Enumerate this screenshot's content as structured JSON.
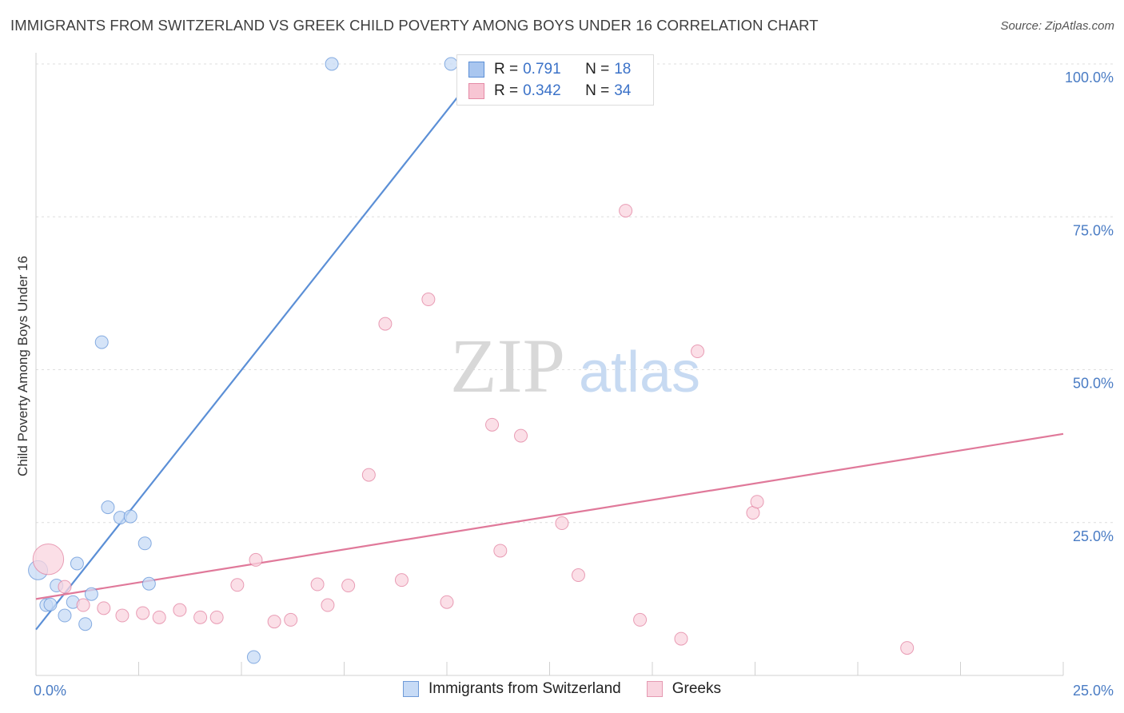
{
  "title": "IMMIGRANTS FROM SWITZERLAND VS GREEK CHILD POVERTY AMONG BOYS UNDER 16 CORRELATION CHART",
  "source": "Source: ZipAtlas.com",
  "watermark": {
    "zip": "ZIP",
    "atlas": "atlas"
  },
  "legend_stats": [
    {
      "r_label": "R =",
      "r_value": "0.791",
      "n_label": "N =",
      "n_value": "18",
      "color": "#a9c6ef",
      "border": "#5b8fd6"
    },
    {
      "r_label": "R =",
      "r_value": "0.342",
      "n_label": "N =",
      "n_value": "34",
      "color": "#f7c5d3",
      "border": "#e58aa6"
    }
  ],
  "bottom_legend": [
    {
      "label": "Immigrants from Switzerland",
      "color": "#c7dbf6",
      "border": "#6f9bd8"
    },
    {
      "label": "Greeks",
      "color": "#f9d4df",
      "border": "#e59ab2"
    }
  ],
  "chart_data": {
    "type": "scatter",
    "title": "IMMIGRANTS FROM SWITZERLAND VS GREEK CHILD POVERTY AMONG BOYS UNDER 16 CORRELATION CHART",
    "xlabel": "",
    "ylabel": "Child Poverty Among Boys Under 16",
    "xlim": [
      0,
      25
    ],
    "ylim": [
      0,
      100
    ],
    "x_tick_labels": [
      "0.0%",
      "25.0%"
    ],
    "y_ticks": [
      25,
      50,
      75,
      100
    ],
    "y_tick_labels": [
      "25.0%",
      "50.0%",
      "75.0%",
      "100.0%"
    ],
    "series": [
      {
        "name": "Immigrants from Switzerland",
        "color": "#5b8fd6",
        "fill": "#c7dbf6",
        "points": [
          {
            "x": 0.05,
            "y": 17.2,
            "size": 1.5
          },
          {
            "x": 0.25,
            "y": 11.5,
            "size": 1
          },
          {
            "x": 0.35,
            "y": 11.6,
            "size": 1
          },
          {
            "x": 0.5,
            "y": 14.7,
            "size": 1
          },
          {
            "x": 0.7,
            "y": 9.8,
            "size": 1
          },
          {
            "x": 0.9,
            "y": 12.0,
            "size": 1
          },
          {
            "x": 1.0,
            "y": 18.3,
            "size": 1
          },
          {
            "x": 1.2,
            "y": 8.4,
            "size": 1
          },
          {
            "x": 1.35,
            "y": 13.3,
            "size": 1
          },
          {
            "x": 1.6,
            "y": 54.5,
            "size": 1
          },
          {
            "x": 1.75,
            "y": 27.5,
            "size": 1
          },
          {
            "x": 2.05,
            "y": 25.8,
            "size": 1
          },
          {
            "x": 2.3,
            "y": 26.0,
            "size": 1
          },
          {
            "x": 2.65,
            "y": 21.6,
            "size": 1
          },
          {
            "x": 2.75,
            "y": 15.0,
            "size": 1
          },
          {
            "x": 5.3,
            "y": 3.0,
            "size": 1
          },
          {
            "x": 7.2,
            "y": 100.0,
            "size": 1
          },
          {
            "x": 10.1,
            "y": 100.0,
            "size": 1
          }
        ],
        "trend": {
          "x1": 0,
          "y1": 7.5,
          "x2": 10.9,
          "y2": 100.0
        }
      },
      {
        "name": "Greeks",
        "color": "#e0799a",
        "fill": "#f9d4df",
        "points": [
          {
            "x": 0.3,
            "y": 19.0,
            "size": 2.4
          },
          {
            "x": 0.7,
            "y": 14.5,
            "size": 1
          },
          {
            "x": 1.15,
            "y": 11.5,
            "size": 1
          },
          {
            "x": 1.65,
            "y": 11.0,
            "size": 1
          },
          {
            "x": 2.1,
            "y": 9.8,
            "size": 1
          },
          {
            "x": 2.6,
            "y": 10.2,
            "size": 1
          },
          {
            "x": 3.0,
            "y": 9.5,
            "size": 1
          },
          {
            "x": 3.5,
            "y": 10.7,
            "size": 1
          },
          {
            "x": 4.0,
            "y": 9.5,
            "size": 1
          },
          {
            "x": 4.4,
            "y": 9.5,
            "size": 1
          },
          {
            "x": 4.9,
            "y": 14.8,
            "size": 1
          },
          {
            "x": 5.35,
            "y": 18.9,
            "size": 1
          },
          {
            "x": 5.8,
            "y": 8.8,
            "size": 1
          },
          {
            "x": 6.2,
            "y": 9.1,
            "size": 1
          },
          {
            "x": 6.85,
            "y": 14.9,
            "size": 1
          },
          {
            "x": 7.1,
            "y": 11.5,
            "size": 1
          },
          {
            "x": 7.6,
            "y": 14.7,
            "size": 1
          },
          {
            "x": 8.1,
            "y": 32.8,
            "size": 1
          },
          {
            "x": 8.5,
            "y": 57.5,
            "size": 1
          },
          {
            "x": 8.9,
            "y": 15.6,
            "size": 1
          },
          {
            "x": 9.55,
            "y": 61.5,
            "size": 1
          },
          {
            "x": 10.0,
            "y": 12.0,
            "size": 1
          },
          {
            "x": 11.1,
            "y": 41.0,
            "size": 1
          },
          {
            "x": 11.3,
            "y": 20.4,
            "size": 1
          },
          {
            "x": 11.8,
            "y": 39.2,
            "size": 1
          },
          {
            "x": 12.8,
            "y": 24.9,
            "size": 1
          },
          {
            "x": 13.2,
            "y": 16.4,
            "size": 1
          },
          {
            "x": 14.35,
            "y": 76.0,
            "size": 1
          },
          {
            "x": 14.7,
            "y": 9.1,
            "size": 1
          },
          {
            "x": 15.7,
            "y": 6.0,
            "size": 1
          },
          {
            "x": 16.1,
            "y": 53.0,
            "size": 1
          },
          {
            "x": 17.45,
            "y": 26.6,
            "size": 1
          },
          {
            "x": 17.55,
            "y": 28.4,
            "size": 1
          },
          {
            "x": 21.2,
            "y": 4.5,
            "size": 1
          }
        ],
        "trend": {
          "x1": 0,
          "y1": 12.5,
          "x2": 25,
          "y2": 39.5
        }
      }
    ]
  }
}
